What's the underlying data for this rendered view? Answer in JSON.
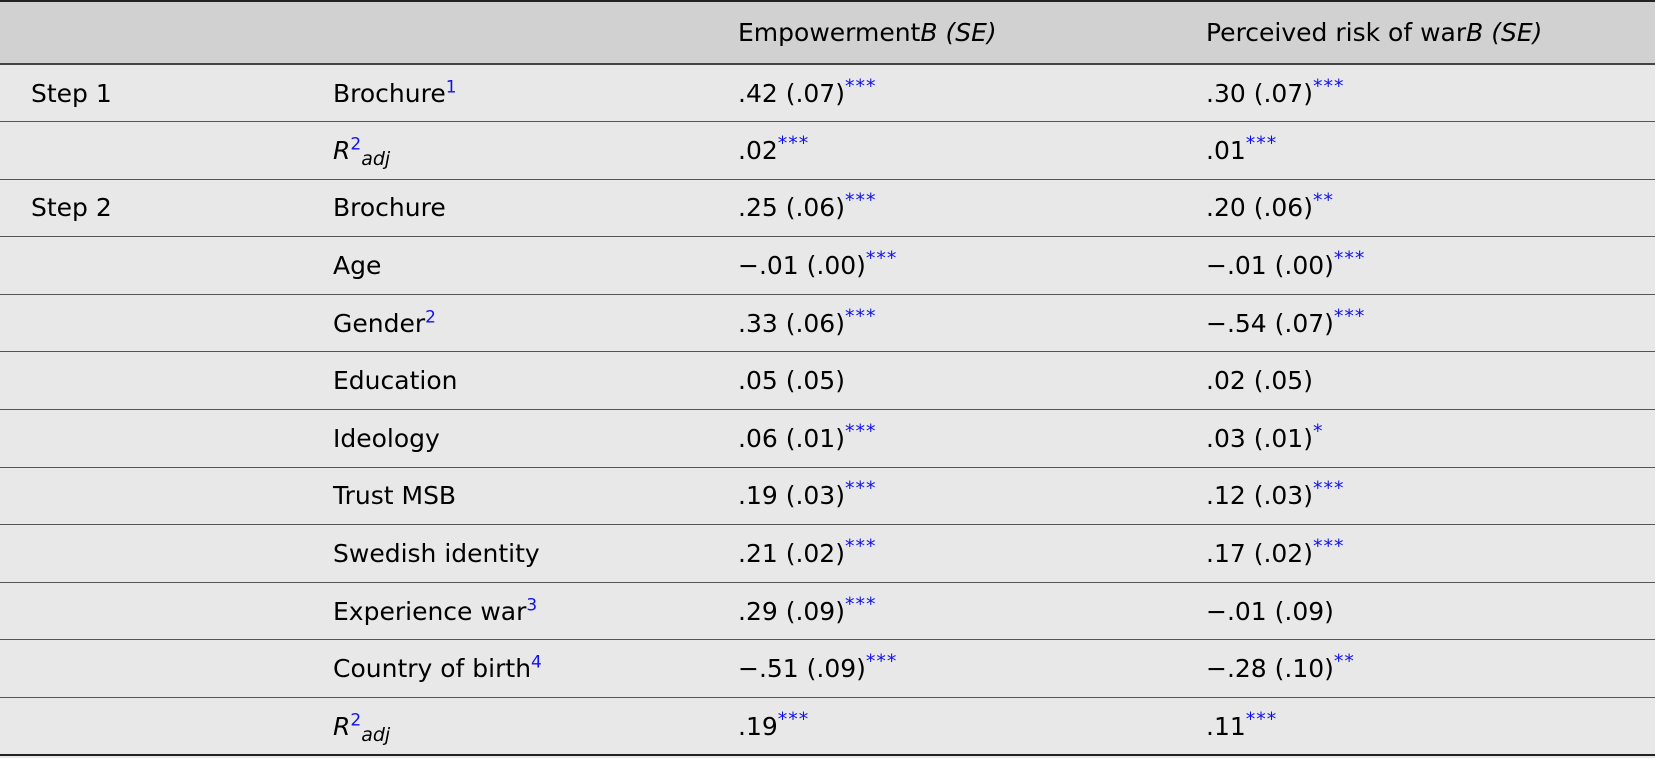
{
  "header": {
    "col_empowerment": "Empowerment",
    "col_empowerment_stat": "B (SE)",
    "col_risk": "Perceived risk of war",
    "col_risk_stat": "B (SE)"
  },
  "rows": [
    {
      "step": "Step 1",
      "label": "Brochure",
      "sup": "1",
      "emp": ".42 (.07)",
      "emp_stars": "***",
      "risk": ".30 (.07)",
      "risk_stars": "***"
    },
    {
      "step": "",
      "label": "R",
      "sup": "2",
      "sub": "adj",
      "emp": ".02",
      "emp_stars": "***",
      "risk": ".01",
      "risk_stars": "***"
    },
    {
      "step": "Step 2",
      "label": "Brochure",
      "emp": ".25 (.06)",
      "emp_stars": "***",
      "risk": ".20 (.06)",
      "risk_stars": "**"
    },
    {
      "step": "",
      "label": "Age",
      "emp": "−.01 (.00)",
      "emp_stars": "***",
      "risk": "−.01 (.00)",
      "risk_stars": "***"
    },
    {
      "step": "",
      "label": "Gender",
      "sup": "2",
      "emp": ".33 (.06)",
      "emp_stars": "***",
      "risk": "−.54 (.07)",
      "risk_stars": "***"
    },
    {
      "step": "",
      "label": "Education",
      "emp": ".05 (.05)",
      "risk": ".02 (.05)"
    },
    {
      "step": "",
      "label": "Ideology",
      "emp": ".06 (.01)",
      "emp_stars": "***",
      "risk": ".03 (.01)",
      "risk_stars": "*"
    },
    {
      "step": "",
      "label": "Trust MSB",
      "emp": ".19 (.03)",
      "emp_stars": "***",
      "risk": ".12 (.03)",
      "risk_stars": "***"
    },
    {
      "step": "",
      "label": "Swedish identity",
      "emp": ".21 (.02)",
      "emp_stars": "***",
      "risk": ".17 (.02)",
      "risk_stars": "***"
    },
    {
      "step": "",
      "label": "Experience war",
      "sup": "3",
      "emp": ".29 (.09)",
      "emp_stars": "***",
      "risk": "−.01 (.09)"
    },
    {
      "step": "",
      "label": "Country of birth",
      "sup": "4",
      "emp": "−.51 (.09)",
      "emp_stars": "***",
      "risk": "−.28 (.10)",
      "risk_stars": "**"
    },
    {
      "step": "",
      "label": "R",
      "sup": "2",
      "sub": "adj",
      "emp": ".19",
      "emp_stars": "***",
      "risk": ".11",
      "risk_stars": "***"
    }
  ]
}
